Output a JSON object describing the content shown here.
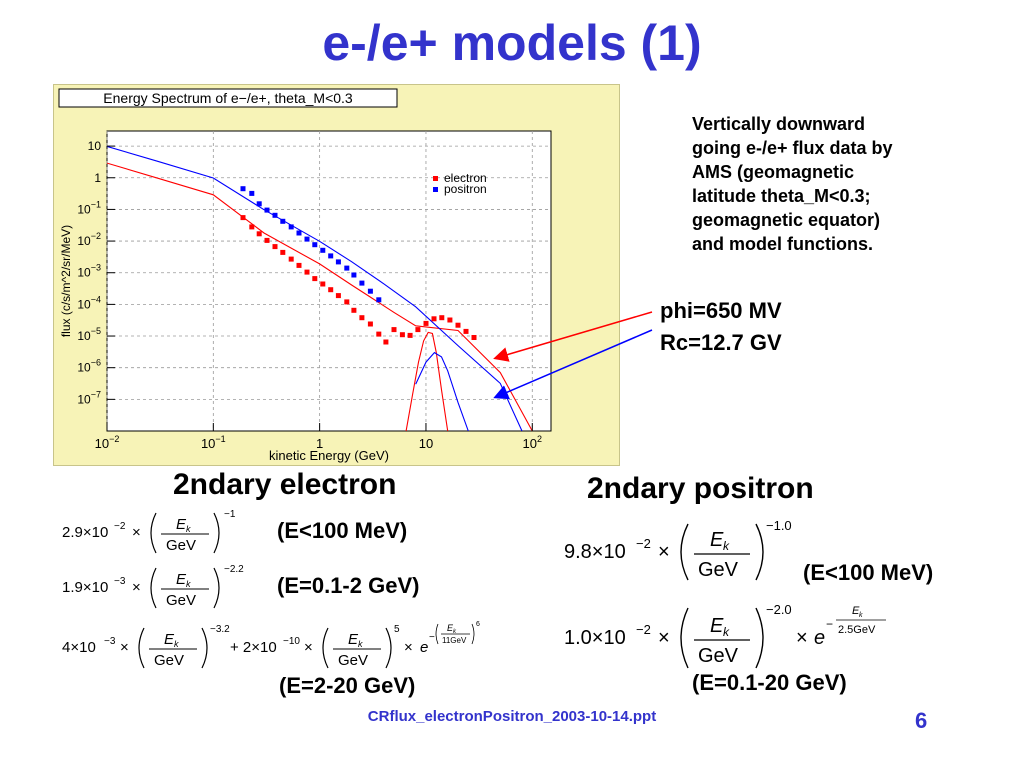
{
  "slide": {
    "title": "e-/e+ models (1)",
    "footer": "CRflux_electronPositron_2003-10-14.ppt",
    "page_number": "6"
  },
  "description": [
    "Vertically downward",
    "going e-/e+ flux data by",
    "AMS (geomagnetic",
    "latitude theta_M<0.3;",
    "geomagnetic equator)",
    "and model functions."
  ],
  "parameters": {
    "phi": "phi=650 MV",
    "rc": "Rc=12.7 GV"
  },
  "electron": {
    "heading": "2ndary electron",
    "ranges": [
      "(E<100 MeV)",
      "(E=0.1-2 GeV)",
      "(E=2-20 GeV)"
    ],
    "formulas": {
      "f1_coef": "2.9×10",
      "f1_coef_exp": "−2",
      "f1_exp": "−1",
      "f2_coef": "1.9×10",
      "f2_coef_exp": "−3",
      "f2_exp": "−2.2",
      "f3_coef1": "4×10",
      "f3_coef1_exp": "−3",
      "f3_exp1": "−3.2",
      "f3_coef2": "+ 2×10",
      "f3_coef2_exp": "−10",
      "f3_exp2": "5",
      "f3_cut_den": "11GeV",
      "f3_cut_pow": "6"
    }
  },
  "positron": {
    "heading": "2ndary positron",
    "ranges": [
      "(E<100 MeV)",
      "(E=0.1-20 GeV)"
    ],
    "formulas": {
      "f1_coef": "9.8×10",
      "f1_coef_exp": "−2",
      "f1_exp": "−1.0",
      "f2_coef": "1.0×10",
      "f2_coef_exp": "−2",
      "f2_exp": "−2.0",
      "f2_cut_den": "2.5GeV"
    }
  },
  "formula_symbols": {
    "ek": "E",
    "ek_sub": "k",
    "gev": "GeV",
    "times": "×",
    "e": "e"
  },
  "chart_data": {
    "type": "scatter",
    "title": "Energy Spectrum of e−/e+, theta_M<0.3",
    "xlabel": "kinetic Energy (GeV)",
    "ylabel": "flux (c/s/m^2/sr/MeV)",
    "xscale": "log",
    "yscale": "log",
    "xlim": [
      0.01,
      150
    ],
    "ylim": [
      1e-08,
      30
    ],
    "x_ticks": [
      0.01,
      0.1,
      1,
      10,
      100
    ],
    "x_tick_labels": [
      {
        "base": "10",
        "exp": "−2"
      },
      {
        "base": "10",
        "exp": "−1"
      },
      {
        "base": "1",
        "exp": ""
      },
      {
        "base": "10",
        "exp": ""
      },
      {
        "base": "10",
        "exp": "2"
      }
    ],
    "y_ticks": [
      1e-07,
      1e-06,
      1e-05,
      0.0001,
      0.001,
      0.01,
      0.1,
      1,
      10
    ],
    "y_tick_labels": [
      {
        "base": "10",
        "exp": "−7"
      },
      {
        "base": "10",
        "exp": "−6"
      },
      {
        "base": "10",
        "exp": "−5"
      },
      {
        "base": "10",
        "exp": "−4"
      },
      {
        "base": "10",
        "exp": "−3"
      },
      {
        "base": "10",
        "exp": "−2"
      },
      {
        "base": "10",
        "exp": "−1"
      },
      {
        "base": "1",
        "exp": ""
      },
      {
        "base": "10",
        "exp": ""
      }
    ],
    "grid": true,
    "legend": "top-right",
    "series": [
      {
        "name": "electron",
        "kind": "points",
        "color": "#ff0000",
        "x": [
          0.19,
          0.23,
          0.27,
          0.32,
          0.38,
          0.45,
          0.54,
          0.64,
          0.76,
          0.9,
          1.07,
          1.27,
          1.5,
          1.8,
          2.1,
          2.5,
          3.0,
          3.6,
          4.2,
          5.0,
          6.0,
          7.1,
          8.4,
          10,
          11.9,
          14.1,
          16.8,
          20,
          23.8,
          28.3
        ],
        "y": [
          0.055,
          0.028,
          0.017,
          0.0105,
          0.0067,
          0.0044,
          0.0027,
          0.0017,
          0.00105,
          0.00065,
          0.00044,
          0.00029,
          0.00019,
          0.00012,
          6.5e-05,
          3.8e-05,
          2.4e-05,
          1.15e-05,
          6.5e-06,
          1.6e-05,
          1.1e-05,
          1.05e-05,
          1.6e-05,
          2.5e-05,
          3.5e-05,
          3.8e-05,
          3.2e-05,
          2.2e-05,
          1.4e-05,
          9e-06
        ]
      },
      {
        "name": "positron",
        "kind": "points",
        "color": "#0000ff",
        "x": [
          0.19,
          0.23,
          0.27,
          0.32,
          0.38,
          0.45,
          0.54,
          0.64,
          0.76,
          0.9,
          1.07,
          1.27,
          1.5,
          1.8,
          2.1,
          2.5,
          3.0,
          3.6
        ],
        "y": [
          0.45,
          0.32,
          0.15,
          0.095,
          0.065,
          0.042,
          0.028,
          0.018,
          0.0115,
          0.0077,
          0.0051,
          0.0034,
          0.0022,
          0.0014,
          0.00085,
          0.00047,
          0.00026,
          0.00014
        ]
      },
      {
        "name": "",
        "kind": "line",
        "color": "#ff0000",
        "x": [
          0.01,
          0.03,
          0.1,
          0.3,
          1,
          2,
          3,
          5,
          8,
          20,
          50,
          100
        ],
        "y": [
          2.9,
          0.97,
          0.29,
          0.018,
          0.0019,
          0.00041,
          0.00017,
          5.6e-05,
          2.1e-05,
          1.5e-05,
          7e-07,
          1e-08
        ]
      },
      {
        "name": "",
        "kind": "line",
        "color": "#ff0000",
        "x": [
          6.5,
          7.5,
          8.5,
          9.5,
          10.5,
          11.5,
          12.5,
          14,
          16
        ],
        "y": [
          1e-08,
          1.5e-07,
          1.5e-06,
          7e-06,
          1.3e-05,
          1.2e-05,
          3e-06,
          2e-07,
          1e-08
        ]
      },
      {
        "name": "",
        "kind": "line",
        "color": "#0000ff",
        "x": [
          0.01,
          0.03,
          0.1,
          0.3,
          1,
          2,
          4,
          8,
          20,
          50,
          80
        ],
        "y": [
          9.8,
          3.3,
          0.98,
          0.098,
          0.0098,
          0.00223,
          0.00045,
          8.4e-05,
          5e-06,
          3.2e-07,
          1e-08
        ]
      },
      {
        "name": "",
        "kind": "line",
        "color": "#0000ff",
        "x": [
          8,
          10,
          12,
          14,
          16,
          20,
          25
        ],
        "y": [
          3e-07,
          1.5e-06,
          3e-06,
          2.2e-06,
          8e-07,
          8e-08,
          1e-08
        ]
      }
    ]
  }
}
